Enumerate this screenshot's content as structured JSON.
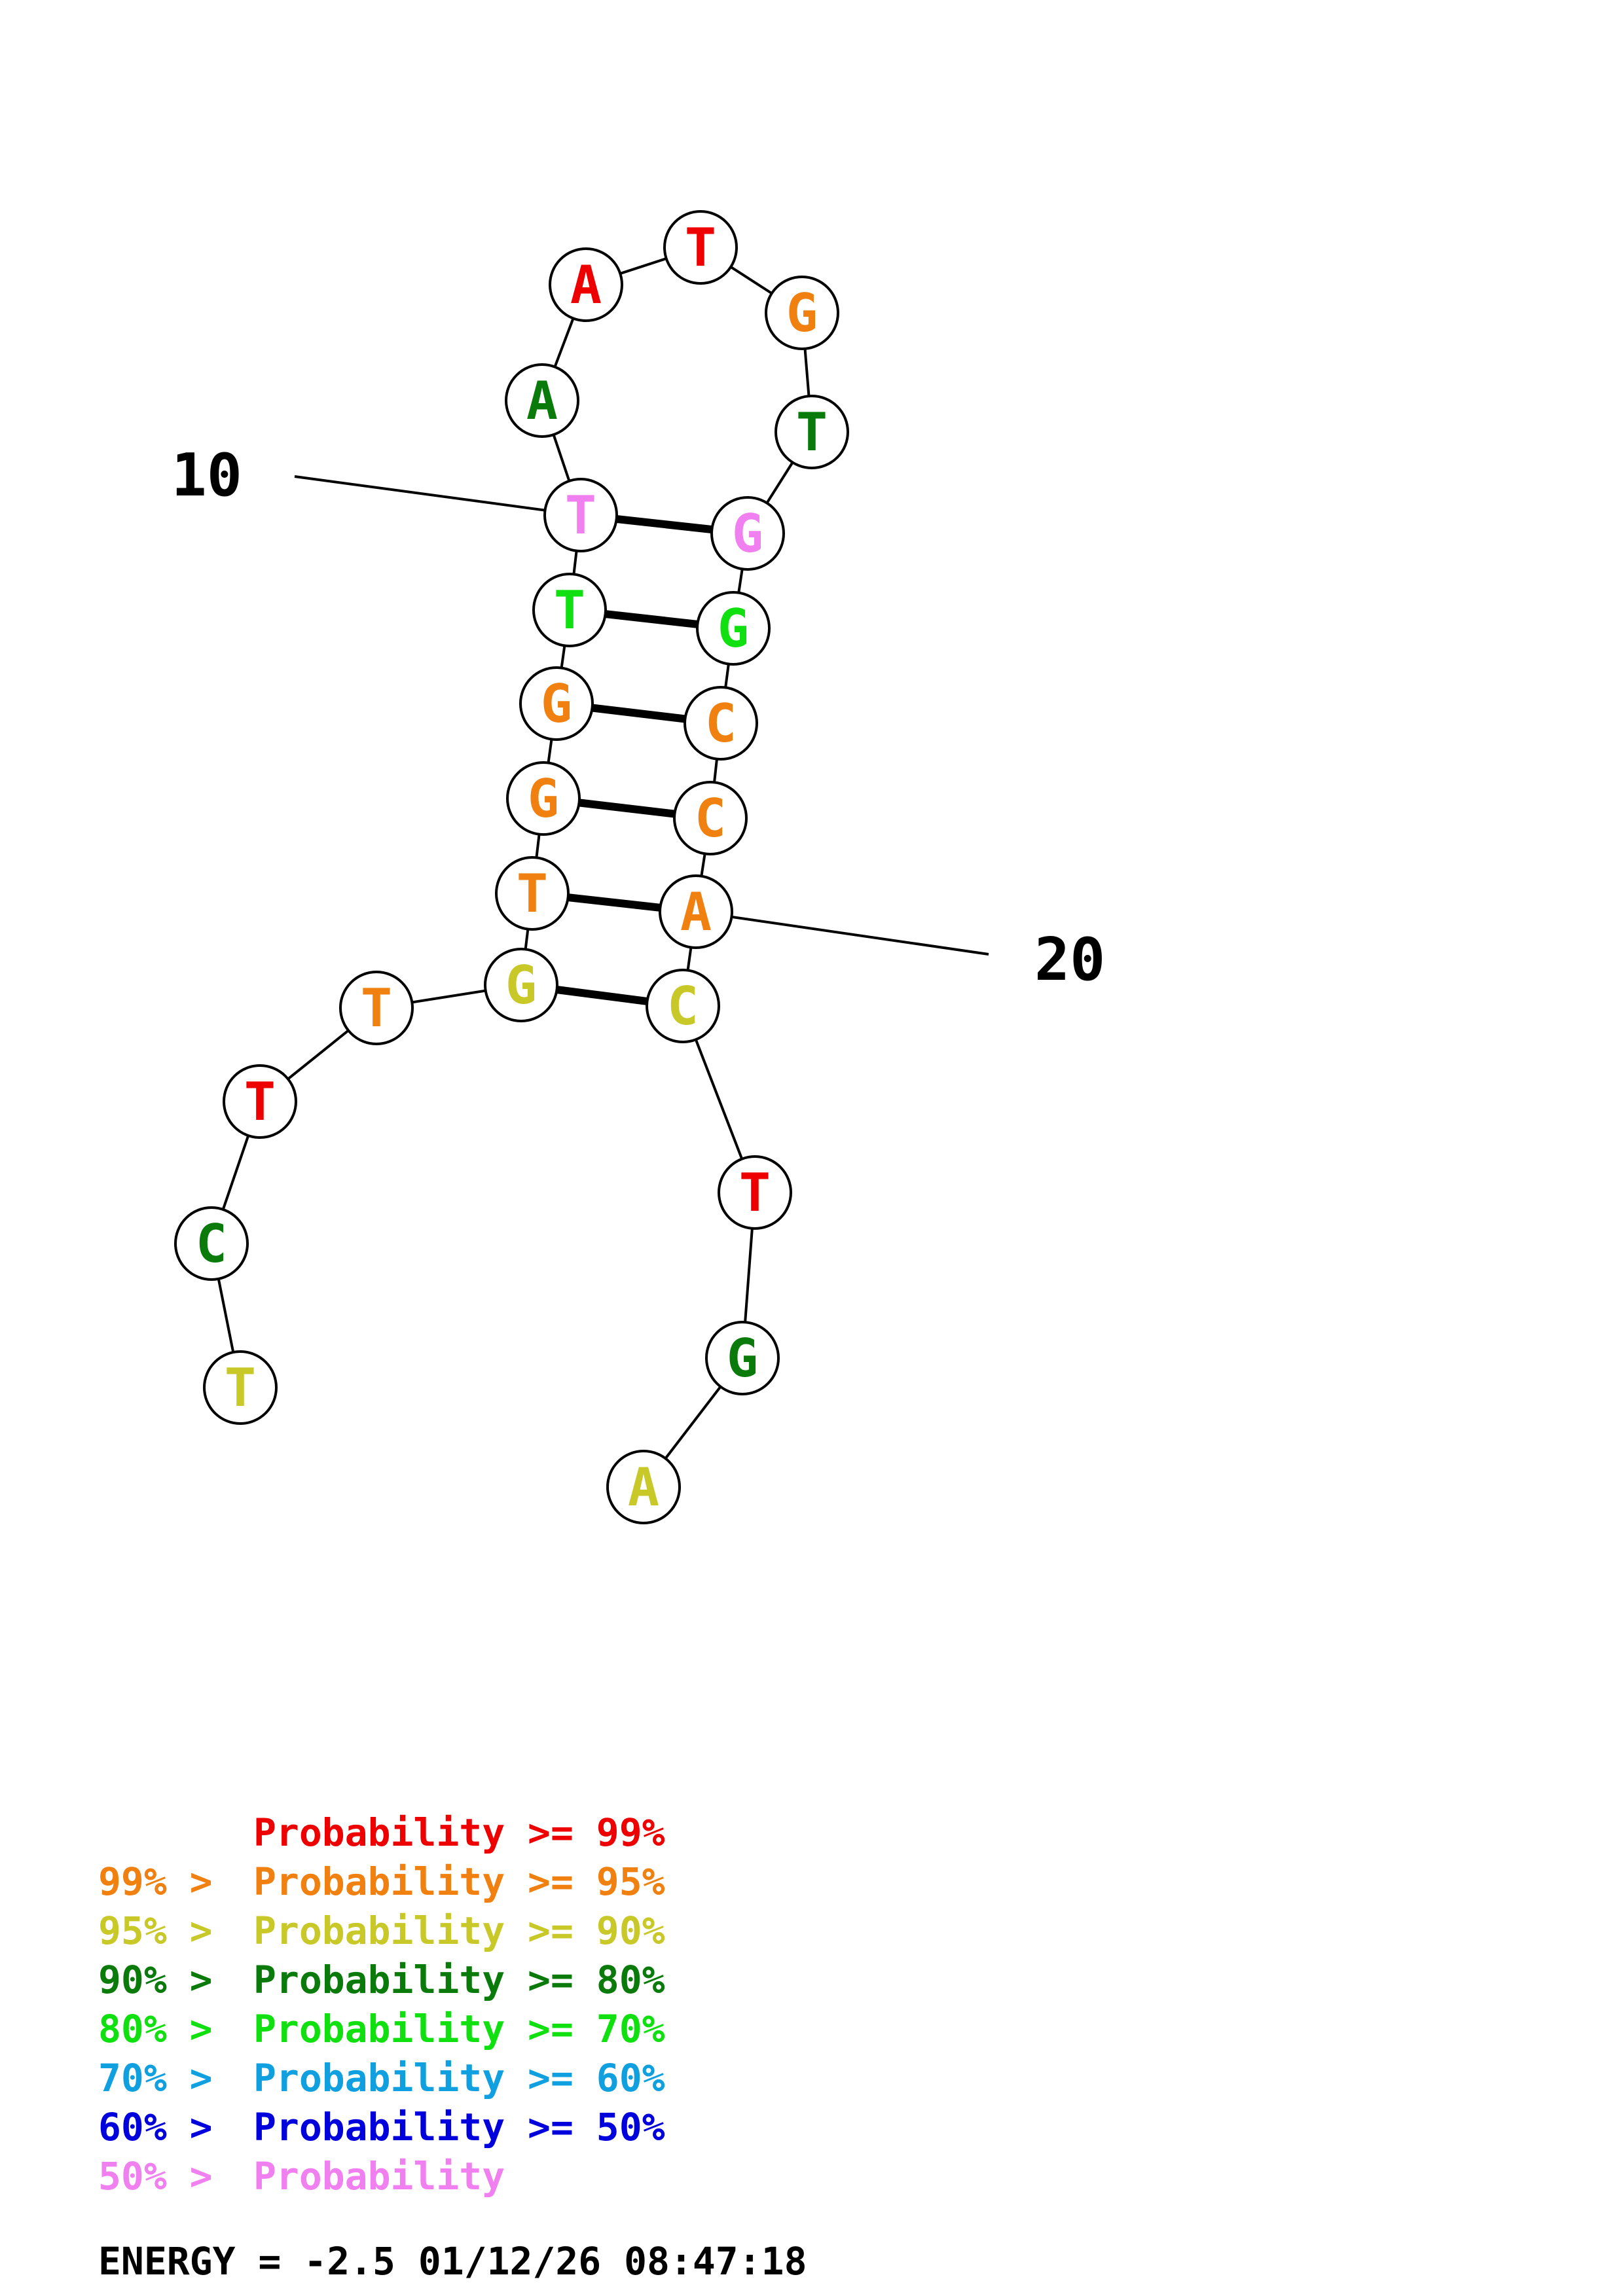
{
  "colors": {
    "p99": "#ee0000",
    "p95": "#f08010",
    "p90": "#c8c828",
    "p80": "#0a7a0a",
    "p70": "#10e010",
    "p60": "#10a0e0",
    "p50": "#0000dd",
    "plow": "#f080f0",
    "black": "#000000"
  },
  "bases": [
    {
      "n": 1,
      "letter": "T",
      "color": "p90"
    },
    {
      "n": 2,
      "letter": "C",
      "color": "p80"
    },
    {
      "n": 3,
      "letter": "T",
      "color": "p99"
    },
    {
      "n": 4,
      "letter": "T",
      "color": "p95"
    },
    {
      "n": 5,
      "letter": "G",
      "color": "p90"
    },
    {
      "n": 6,
      "letter": "T",
      "color": "p95"
    },
    {
      "n": 7,
      "letter": "G",
      "color": "p95"
    },
    {
      "n": 8,
      "letter": "G",
      "color": "p95"
    },
    {
      "n": 9,
      "letter": "T",
      "color": "p70"
    },
    {
      "n": 10,
      "letter": "T",
      "color": "plow"
    },
    {
      "n": 11,
      "letter": "A",
      "color": "p80"
    },
    {
      "n": 12,
      "letter": "A",
      "color": "p99"
    },
    {
      "n": 13,
      "letter": "T",
      "color": "p99"
    },
    {
      "n": 14,
      "letter": "G",
      "color": "p95"
    },
    {
      "n": 15,
      "letter": "T",
      "color": "p80"
    },
    {
      "n": 16,
      "letter": "G",
      "color": "plow"
    },
    {
      "n": 17,
      "letter": "G",
      "color": "p70"
    },
    {
      "n": 18,
      "letter": "C",
      "color": "p95"
    },
    {
      "n": 19,
      "letter": "C",
      "color": "p95"
    },
    {
      "n": 20,
      "letter": "A",
      "color": "p95"
    },
    {
      "n": 21,
      "letter": "C",
      "color": "p90"
    },
    {
      "n": 22,
      "letter": "T",
      "color": "p99"
    },
    {
      "n": 23,
      "letter": "G",
      "color": "p80"
    },
    {
      "n": 24,
      "letter": "A",
      "color": "p90"
    }
  ],
  "pairs": [
    [
      5,
      21
    ],
    [
      6,
      20
    ],
    [
      7,
      19
    ],
    [
      8,
      18
    ],
    [
      9,
      17
    ],
    [
      10,
      16
    ]
  ],
  "position_labels": [
    {
      "text": "10",
      "base": 10
    },
    {
      "text": "20",
      "base": 20
    }
  ],
  "legend": [
    {
      "prefix": "    ",
      "main": "Probability >= 99%",
      "color": "p99"
    },
    {
      "prefix": "99% > ",
      "main": "Probability >= 95%",
      "color": "p95"
    },
    {
      "prefix": "95% > ",
      "main": "Probability >= 90%",
      "color": "p90"
    },
    {
      "prefix": "90% > ",
      "main": "Probability >= 80%",
      "color": "p80"
    },
    {
      "prefix": "80% > ",
      "main": "Probability >= 70%",
      "color": "p70"
    },
    {
      "prefix": "70% > ",
      "main": "Probability >= 60%",
      "color": "p60"
    },
    {
      "prefix": "60% > ",
      "main": "Probability >= 50%",
      "color": "p50"
    },
    {
      "prefix": "50% > ",
      "main": "Probability",
      "color": "plow"
    }
  ],
  "energy_line": "ENERGY = -2.5  01/12/26 08:47:18"
}
